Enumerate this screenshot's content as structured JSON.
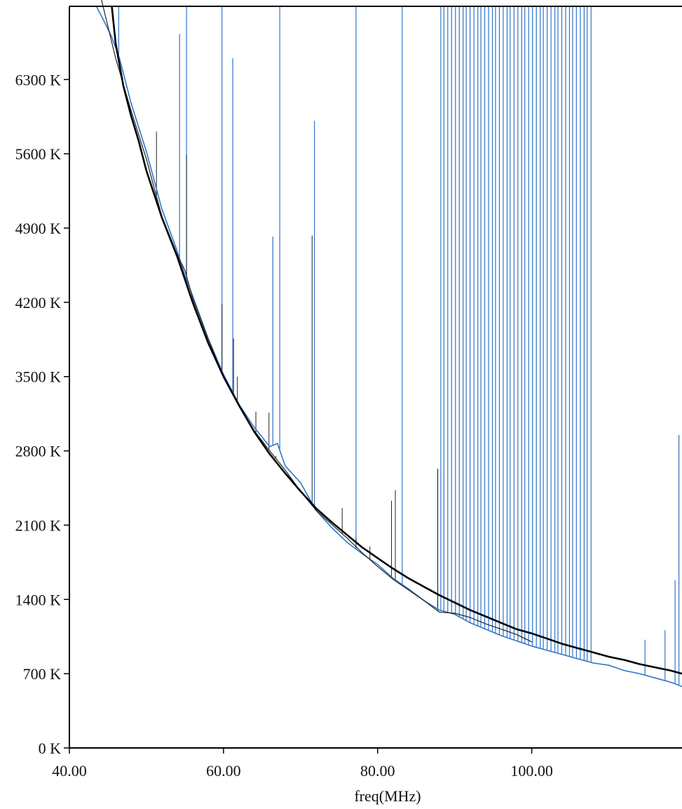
{
  "chart_data": {
    "type": "line",
    "title": "",
    "xlabel": "freq(MHz)",
    "ylabel": "",
    "xlim": [
      40,
      119.5
    ],
    "ylim": [
      0,
      6990
    ],
    "grid": false,
    "x_ticks": [
      {
        "value": 40,
        "label": "40.00"
      },
      {
        "value": 60,
        "label": "60.00"
      },
      {
        "value": 80,
        "label": "80.00"
      },
      {
        "value": 100,
        "label": "100.00"
      }
    ],
    "y_ticks": [
      {
        "value": 0,
        "label": "0 K"
      },
      {
        "value": 700,
        "label": "700 K"
      },
      {
        "value": 1400,
        "label": "1400 K"
      },
      {
        "value": 2100,
        "label": "2100 K"
      },
      {
        "value": 2800,
        "label": "2800 K"
      },
      {
        "value": 3500,
        "label": "3500 K"
      },
      {
        "value": 4200,
        "label": "4200 K"
      },
      {
        "value": 4900,
        "label": "4900 K"
      },
      {
        "value": 5600,
        "label": "5600 K"
      },
      {
        "value": 6300,
        "label": "6300 K"
      }
    ],
    "series": [
      {
        "color": "#2f74c9",
        "x": [
          43.5,
          44.5,
          45.5,
          46.5,
          48,
          50,
          52,
          54,
          55,
          56,
          58,
          60,
          62,
          64,
          66,
          67,
          68,
          70,
          72,
          74,
          76,
          78,
          80,
          82,
          84,
          86,
          88,
          90,
          92,
          94,
          96,
          98,
          100,
          102,
          104,
          106,
          108,
          110,
          112,
          114,
          116,
          118,
          119.5
        ],
        "y": [
          6990,
          6850,
          6700,
          6500,
          6080,
          5620,
          5080,
          4680,
          4450,
          4260,
          3860,
          3520,
          3240,
          3020,
          2840,
          2870,
          2660,
          2500,
          2240,
          2080,
          1940,
          1830,
          1730,
          1600,
          1500,
          1390,
          1300,
          1260,
          1180,
          1120,
          1060,
          1010,
          960,
          920,
          880,
          840,
          800,
          780,
          730,
          700,
          660,
          620,
          580
        ]
      },
      {
        "color": "#222222",
        "x": [
          44,
          46,
          48,
          50,
          52,
          54,
          55,
          56,
          58,
          60,
          62,
          64,
          66,
          68,
          70,
          72,
          74,
          76,
          78,
          80,
          82,
          84,
          86,
          88,
          90,
          92,
          94,
          96,
          98,
          100
        ],
        "y": [
          7100,
          6500,
          6010,
          5550,
          5010,
          4650,
          4500,
          4240,
          3860,
          3490,
          3230,
          2990,
          2800,
          2620,
          2420,
          2240,
          2110,
          1980,
          1840,
          1710,
          1590,
          1490,
          1390,
          1280,
          1270,
          1230,
          1170,
          1120,
          1070,
          1000
        ]
      },
      {
        "color": "#000000",
        "x": [
          45.5,
          46,
          47,
          48,
          49,
          50,
          52,
          54,
          56,
          58,
          60,
          62,
          64,
          66,
          68,
          70,
          72,
          74,
          76,
          78,
          80,
          82,
          84,
          86,
          88,
          90,
          92,
          94,
          96,
          98,
          100,
          102,
          104,
          106,
          108,
          110,
          112,
          114,
          116,
          118,
          119.5
        ],
        "y": [
          6990,
          6640,
          6240,
          5960,
          5720,
          5440,
          5000,
          4630,
          4200,
          3820,
          3500,
          3230,
          2980,
          2770,
          2590,
          2420,
          2260,
          2130,
          2010,
          1890,
          1790,
          1690,
          1600,
          1520,
          1440,
          1370,
          1300,
          1240,
          1180,
          1120,
          1080,
          1030,
          980,
          940,
          900,
          860,
          830,
          790,
          760,
          730,
          700
        ]
      }
    ],
    "spikes_blue": [
      [
        46.4,
        6990
      ],
      [
        54.3,
        6730
      ],
      [
        55.2,
        6990
      ],
      [
        59.8,
        6990
      ],
      [
        61.2,
        6500
      ],
      [
        66.4,
        4820
      ],
      [
        67.3,
        6990
      ],
      [
        71.8,
        5910
      ],
      [
        77.2,
        6990
      ],
      [
        83.2,
        6990
      ],
      [
        87.8,
        2630
      ],
      [
        88.2,
        6990
      ],
      [
        88.6,
        6990
      ],
      [
        89.1,
        6990
      ],
      [
        89.6,
        6990
      ],
      [
        90.1,
        6990
      ],
      [
        90.6,
        6990
      ],
      [
        91.1,
        6990
      ],
      [
        91.5,
        6990
      ],
      [
        92.0,
        6990
      ],
      [
        92.5,
        6990
      ],
      [
        93.0,
        6990
      ],
      [
        93.4,
        6990
      ],
      [
        93.9,
        6990
      ],
      [
        94.4,
        6990
      ],
      [
        94.9,
        6990
      ],
      [
        95.3,
        6990
      ],
      [
        95.8,
        6990
      ],
      [
        96.3,
        6990
      ],
      [
        96.8,
        6990
      ],
      [
        97.2,
        6990
      ],
      [
        97.7,
        6990
      ],
      [
        98.2,
        6990
      ],
      [
        98.7,
        6990
      ],
      [
        99.1,
        6990
      ],
      [
        99.6,
        6990
      ],
      [
        100.1,
        6990
      ],
      [
        100.6,
        6990
      ],
      [
        101.1,
        6990
      ],
      [
        101.5,
        6990
      ],
      [
        102.0,
        6990
      ],
      [
        102.5,
        6990
      ],
      [
        103.0,
        6990
      ],
      [
        103.4,
        6990
      ],
      [
        103.9,
        6990
      ],
      [
        104.4,
        6990
      ],
      [
        104.9,
        6990
      ],
      [
        105.3,
        6990
      ],
      [
        105.8,
        6990
      ],
      [
        106.3,
        6990
      ],
      [
        106.8,
        6990
      ],
      [
        107.2,
        6990
      ],
      [
        107.7,
        6990
      ],
      [
        114.7,
        1020
      ],
      [
        117.3,
        1110
      ],
      [
        118.6,
        1580
      ],
      [
        119.1,
        2950
      ]
    ],
    "spikes_black": [
      [
        51.3,
        5810
      ],
      [
        55.2,
        5590
      ],
      [
        59.8,
        4180
      ],
      [
        61.3,
        3860
      ],
      [
        61.8,
        3500
      ],
      [
        64.2,
        3170
      ],
      [
        65.9,
        3160
      ],
      [
        66.8,
        2750
      ],
      [
        71.5,
        4830
      ],
      [
        75.4,
        2260
      ],
      [
        77.2,
        1980
      ],
      [
        79.0,
        1900
      ],
      [
        81.8,
        2330
      ],
      [
        82.3,
        2430
      ],
      [
        87.8,
        2630
      ]
    ]
  }
}
